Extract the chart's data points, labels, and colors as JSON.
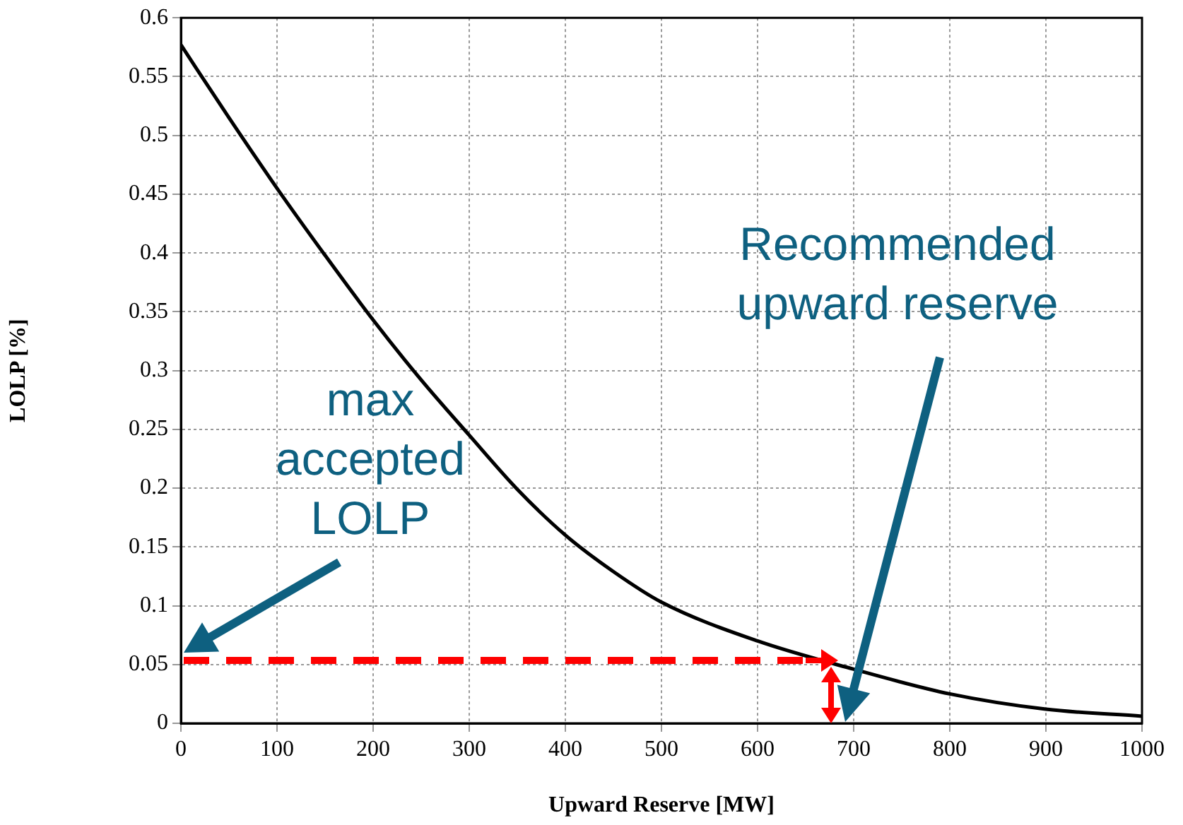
{
  "chart_data": {
    "type": "line",
    "xlabel": "Upward Reserve [MW]",
    "ylabel": "LOLP [%]",
    "x": [
      0,
      50,
      100,
      150,
      200,
      250,
      300,
      350,
      400,
      450,
      500,
      600,
      700,
      800,
      900,
      1000
    ],
    "series": [
      {
        "color": "#000000",
        "values": [
          0.577,
          0.515,
          0.455,
          0.398,
          0.343,
          0.292,
          0.245,
          0.199,
          0.16,
          0.129,
          0.103,
          0.07,
          0.046,
          0.025,
          0.012,
          0.006
        ]
      }
    ],
    "xlim": [
      0,
      1000
    ],
    "xticks": [
      0,
      100,
      200,
      300,
      400,
      500,
      600,
      700,
      800,
      900,
      1000
    ],
    "ylim": [
      0,
      0.6
    ],
    "yticks": [
      0,
      0.05,
      0.1,
      0.15,
      0.2,
      0.25,
      0.3,
      0.35,
      0.4,
      0.45,
      0.5,
      0.55,
      0.6
    ],
    "grid": true,
    "legend": false,
    "marker": "none",
    "annotations": [
      "max accepted LOLP",
      "Recommended upward reserve"
    ]
  }
}
